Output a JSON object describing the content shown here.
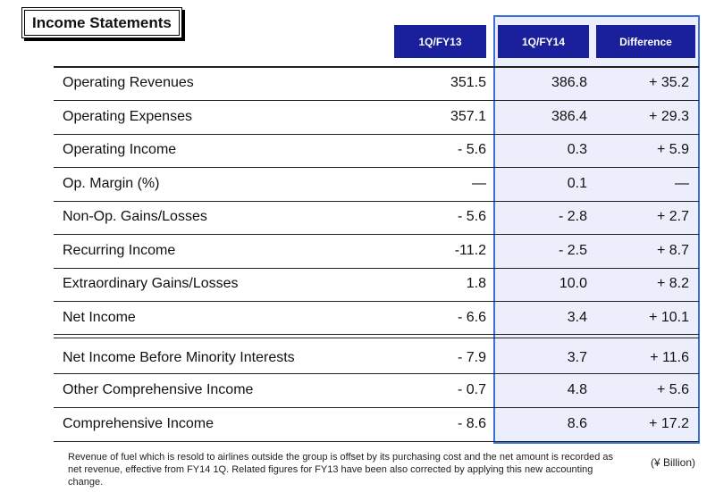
{
  "title": "Income Statements",
  "columns": [
    "1Q/FY13",
    "1Q/FY14",
    "Difference"
  ],
  "rows": [
    {
      "label": "Operating Revenues",
      "fy13": "351.5",
      "fy14": "386.8",
      "diff": "+ 35.2"
    },
    {
      "label": "Operating Expenses",
      "fy13": "357.1",
      "fy14": "386.4",
      "diff": "+ 29.3"
    },
    {
      "label": "Operating Income",
      "fy13": "- 5.6",
      "fy14": "0.3",
      "diff": "+ 5.9"
    },
    {
      "label": "Op. Margin (%)",
      "fy13": "—",
      "fy14": "0.1",
      "diff": "—"
    },
    {
      "label": "Non-Op. Gains/Losses",
      "fy13": "- 5.6",
      "fy14": "- 2.8",
      "diff": "+ 2.7"
    },
    {
      "label": "Recurring Income",
      "fy13": "-11.2",
      "fy14": "- 2.5",
      "diff": "+ 8.7"
    },
    {
      "label": "Extraordinary Gains/Losses",
      "fy13": "1.8",
      "fy14": "10.0",
      "diff": "+ 8.2"
    },
    {
      "label": "Net Income",
      "fy13": "- 6.6",
      "fy14": "3.4",
      "diff": "+ 10.1"
    },
    {
      "label": "Net Income Before Minority Interests",
      "fy13": "- 7.9",
      "fy14": "3.7",
      "diff": "+ 11.6"
    },
    {
      "label": "Other Comprehensive Income",
      "fy13": "- 0.7",
      "fy14": "4.8",
      "diff": "+ 5.6"
    },
    {
      "label": "Comprehensive Income",
      "fy13": "- 8.6",
      "fy14": "8.6",
      "diff": "+ 17.2"
    }
  ],
  "note": "Revenue of fuel which is resold to airlines outside the group is offset by its purchasing cost and the net amount is recorded as net revenue, effective from FY14 1Q. Related figures for FY13 have been also corrected by applying this new accounting change.",
  "unit": "(¥ Billion)",
  "colors": {
    "header_bg": "#1a1f9c",
    "highlight_border": "#3d6fd6",
    "highlight_bg": "#eceefb"
  }
}
